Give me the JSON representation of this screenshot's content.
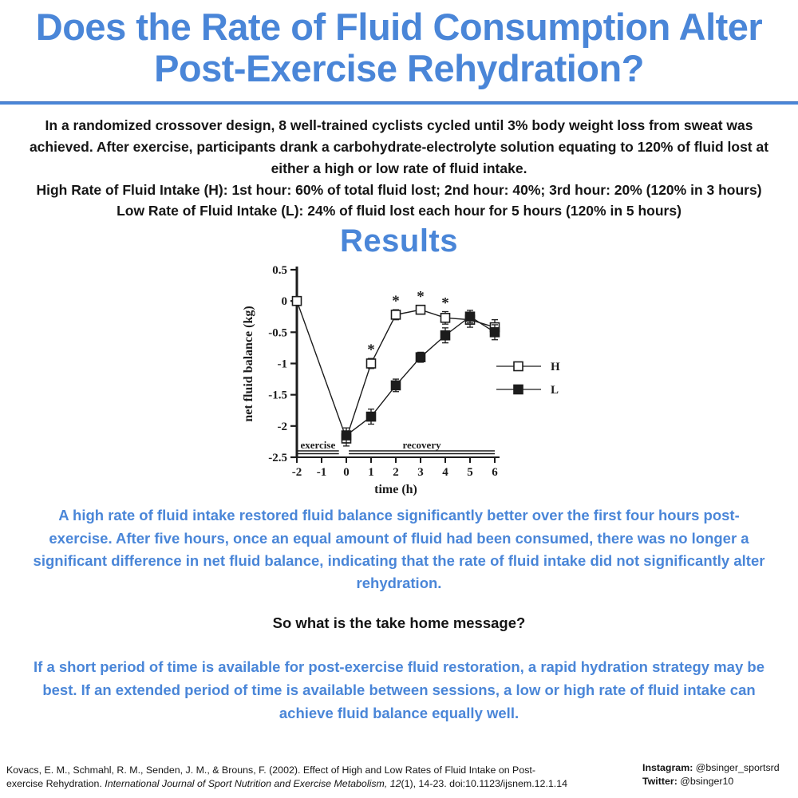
{
  "colors": {
    "accent": "#4a86d8",
    "ink": "#151515",
    "chart_ink": "#1c1c1c"
  },
  "title": "Does the Rate of Fluid Consumption Alter Post-Exercise Rehydration?",
  "intro": {
    "study": "In a randomized crossover design, 8 well-trained cyclists cycled until 3% body weight loss from sweat was achieved. After exercise, participants drank a carbohydrate-electrolyte solution equating to 120% of fluid lost at either a high or low rate of fluid intake.",
    "high_rate": "High Rate of Fluid Intake (H): 1st hour: 60% of total fluid lost; 2nd hour: 40%; 3rd hour: 20% (120% in 3 hours)",
    "low_rate": "Low Rate of Fluid Intake (L): 24% of fluid lost each hour for 5 hours (120% in 5 hours)"
  },
  "results_heading": "Results",
  "chart_data": {
    "type": "line",
    "title": "",
    "xlabel": "time (h)",
    "ylabel": "net fluid balance (kg)",
    "xlim": [
      -2,
      6
    ],
    "ylim": [
      -2.5,
      0.5
    ],
    "xticks": [
      -2,
      -1,
      0,
      1,
      2,
      3,
      4,
      5,
      6
    ],
    "yticks": [
      0.5,
      0,
      -0.5,
      -1,
      -1.5,
      -2,
      -2.5
    ],
    "grid": false,
    "legend_position": "right",
    "series": [
      {
        "name": "H",
        "marker": "open-square",
        "x": [
          -2,
          0,
          1,
          2,
          3,
          4,
          5,
          6
        ],
        "y": [
          0,
          -2.2,
          -1.0,
          -0.22,
          -0.14,
          -0.27,
          -0.3,
          -0.42
        ],
        "error": [
          0.04,
          0.12,
          0.08,
          0.08,
          0.07,
          0.1,
          0.12,
          0.12
        ]
      },
      {
        "name": "L",
        "marker": "filled-square",
        "x": [
          0,
          1,
          2,
          3,
          4,
          5,
          6
        ],
        "y": [
          -2.15,
          -1.85,
          -1.35,
          -0.9,
          -0.55,
          -0.25,
          -0.5
        ],
        "error": [
          0.12,
          0.12,
          0.1,
          0.08,
          0.12,
          0.1,
          0.12
        ]
      }
    ],
    "annotations": {
      "asterisk_series": "H",
      "asterisk_x": [
        1,
        2,
        3,
        4
      ],
      "phase_bars": [
        {
          "label": "exercise",
          "from": -2,
          "to": -0.3
        },
        {
          "label": "recovery",
          "from": 0.1,
          "to": 6
        }
      ]
    },
    "legend": {
      "entries": [
        "H",
        "L"
      ]
    }
  },
  "findings": "A high rate of fluid intake restored fluid balance significantly better over the first four hours post-exercise.  After five hours, once an equal amount of fluid had been consumed, there was no longer a significant difference in net fluid balance, indicating that the rate of fluid intake did not significantly alter rehydration.",
  "take_home_question": "So what is the take home message?",
  "take_home_message": "If a short period of time is available for post-exercise fluid restoration, a rapid hydration strategy may be best. If an extended period of time is available between sessions, a low or high rate of fluid intake can achieve fluid balance equally well.",
  "footer": {
    "citation_part1": "Kovacs, E. M., Schmahl, R. M., Senden, J. M., & Brouns, F. (2002). Effect of High and Low Rates of Fluid Intake on Post-exercise Rehydration. ",
    "citation_italic": "International Journal of Sport Nutrition and Exercise Metabolism, 12",
    "citation_part3": "(1), 14-23. doi:10.1123/ijsnem.12.1.14",
    "instagram_label": "Instagram:",
    "instagram_handle": " @bsinger_sportsrd",
    "twitter_label": "Twitter:",
    "twitter_handle": " @bsinger10"
  }
}
